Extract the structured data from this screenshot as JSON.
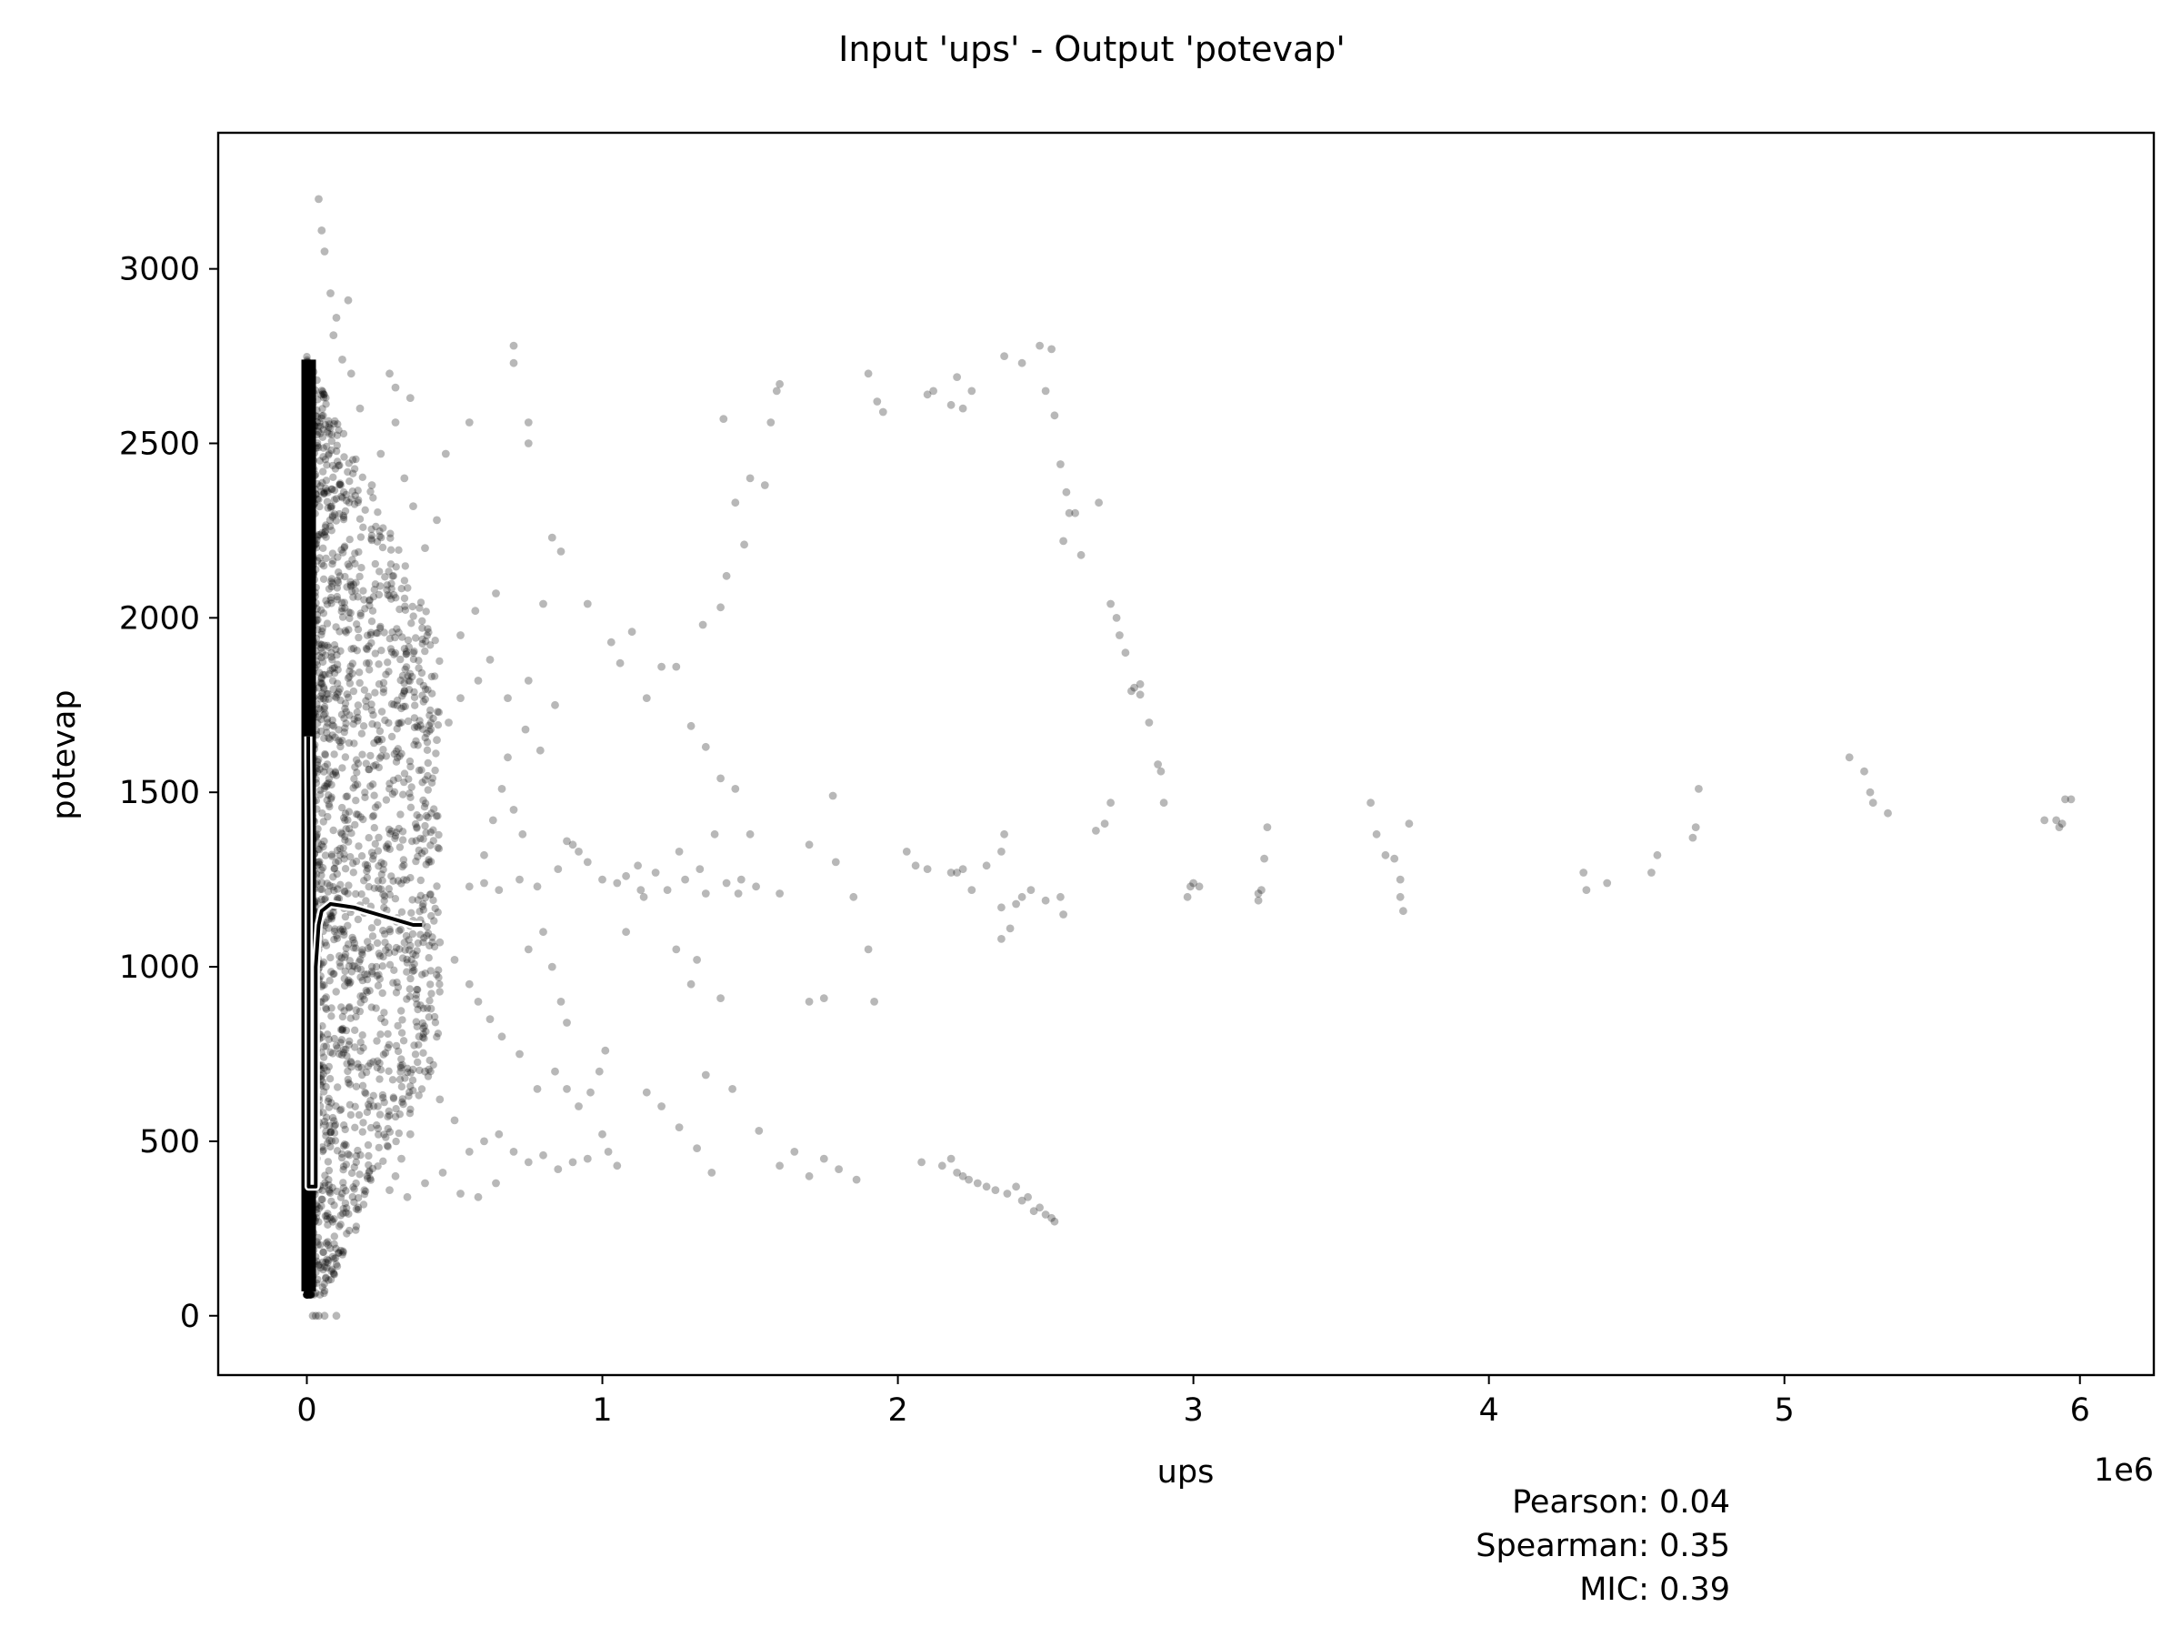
{
  "chart_data": {
    "type": "scatter",
    "title": "Input 'ups' - Output 'potevap'",
    "xlabel": "ups",
    "ylabel": "potevap",
    "x_offset_label": "1e6",
    "xlim": [
      -0.3,
      6.25
    ],
    "ylim": [
      -170,
      3390
    ],
    "x_ticks": [
      0,
      1,
      2,
      3,
      4,
      5,
      6
    ],
    "x_tick_labels": [
      "0",
      "1",
      "2",
      "3",
      "4",
      "5",
      "6"
    ],
    "y_ticks": [
      0,
      500,
      1000,
      1500,
      2000,
      2500,
      3000
    ],
    "y_tick_labels": [
      "0",
      "500",
      "1000",
      "1500",
      "2000",
      "2500",
      "3000"
    ],
    "grid": false,
    "point_color": "#000000",
    "point_opacity": 0.28,
    "series": [
      {
        "points": [
          [
            0.7,
            2780
          ],
          [
            0.7,
            2730
          ],
          [
            0.75,
            2560
          ],
          [
            0.75,
            2500
          ],
          [
            0.55,
            2560
          ],
          [
            0.47,
            2470
          ],
          [
            0.83,
            2230
          ],
          [
            0.86,
            2190
          ],
          [
            0.8,
            2040
          ],
          [
            0.95,
            2040
          ],
          [
            1.03,
            1930
          ],
          [
            1.06,
            1870
          ],
          [
            1.1,
            1960
          ],
          [
            1.15,
            1770
          ],
          [
            1.2,
            1860
          ],
          [
            1.25,
            1860
          ],
          [
            1.3,
            1690
          ],
          [
            1.35,
            1630
          ],
          [
            1.4,
            1540
          ],
          [
            1.45,
            1510
          ],
          [
            1.38,
            1380
          ],
          [
            1.5,
            1380
          ],
          [
            1.6,
            1210
          ],
          [
            1.7,
            1350
          ],
          [
            1.78,
            1490
          ],
          [
            1.79,
            1300
          ],
          [
            1.85,
            1200
          ],
          [
            1.9,
            1050
          ],
          [
            1.92,
            900
          ],
          [
            1.7,
            900
          ],
          [
            1.75,
            910
          ],
          [
            1.4,
            910
          ],
          [
            1.3,
            950
          ],
          [
            1.32,
            1020
          ],
          [
            1.25,
            1050
          ],
          [
            1.35,
            690
          ],
          [
            1.44,
            650
          ],
          [
            1.53,
            530
          ],
          [
            1.6,
            430
          ],
          [
            1.65,
            470
          ],
          [
            1.7,
            400
          ],
          [
            1.75,
            450
          ],
          [
            1.8,
            420
          ],
          [
            1.86,
            390
          ],
          [
            1.15,
            640
          ],
          [
            1.2,
            600
          ],
          [
            1.26,
            540
          ],
          [
            1.32,
            480
          ],
          [
            1.37,
            410
          ],
          [
            1.41,
            2570
          ],
          [
            1.45,
            2330
          ],
          [
            1.48,
            2210
          ],
          [
            1.5,
            2400
          ],
          [
            1.55,
            2380
          ],
          [
            1.57,
            2560
          ],
          [
            1.59,
            2650
          ],
          [
            1.6,
            2670
          ],
          [
            1.42,
            2120
          ],
          [
            1.4,
            2030
          ],
          [
            1.34,
            1980
          ],
          [
            1.9,
            2700
          ],
          [
            1.93,
            2620
          ],
          [
            1.95,
            2590
          ],
          [
            2.1,
            2640
          ],
          [
            2.12,
            2650
          ],
          [
            2.18,
            2610
          ],
          [
            2.2,
            2690
          ],
          [
            2.22,
            2600
          ],
          [
            2.25,
            2650
          ],
          [
            2.36,
            2750
          ],
          [
            2.42,
            2730
          ],
          [
            2.48,
            2780
          ],
          [
            2.52,
            2770
          ],
          [
            2.5,
            2650
          ],
          [
            2.53,
            2580
          ],
          [
            2.55,
            2440
          ],
          [
            2.57,
            2360
          ],
          [
            2.58,
            2300
          ],
          [
            2.56,
            2220
          ],
          [
            2.6,
            2300
          ],
          [
            2.62,
            2180
          ],
          [
            2.68,
            2330
          ],
          [
            2.72,
            2040
          ],
          [
            2.74,
            2000
          ],
          [
            2.75,
            1950
          ],
          [
            2.77,
            1900
          ],
          [
            2.79,
            1790
          ],
          [
            2.82,
            1780
          ],
          [
            2.85,
            1700
          ],
          [
            2.88,
            1580
          ],
          [
            2.89,
            1560
          ],
          [
            2.9,
            1470
          ],
          [
            2.8,
            1800
          ],
          [
            2.82,
            1810
          ],
          [
            2.72,
            1470
          ],
          [
            2.7,
            1410
          ],
          [
            2.67,
            1390
          ],
          [
            2.03,
            1330
          ],
          [
            2.06,
            1290
          ],
          [
            2.1,
            1280
          ],
          [
            2.18,
            1270
          ],
          [
            2.2,
            1270
          ],
          [
            2.22,
            1280
          ],
          [
            2.25,
            1220
          ],
          [
            2.3,
            1290
          ],
          [
            2.35,
            1330
          ],
          [
            2.36,
            1380
          ],
          [
            2.35,
            1170
          ],
          [
            2.4,
            1180
          ],
          [
            2.42,
            1200
          ],
          [
            2.45,
            1220
          ],
          [
            2.5,
            1190
          ],
          [
            2.55,
            1200
          ],
          [
            2.56,
            1150
          ],
          [
            2.35,
            1080
          ],
          [
            2.38,
            1110
          ],
          [
            2.08,
            440
          ],
          [
            2.15,
            430
          ],
          [
            2.18,
            450
          ],
          [
            2.2,
            410
          ],
          [
            2.22,
            400
          ],
          [
            2.24,
            390
          ],
          [
            2.27,
            380
          ],
          [
            2.3,
            370
          ],
          [
            2.33,
            360
          ],
          [
            2.37,
            350
          ],
          [
            2.4,
            370
          ],
          [
            2.42,
            330
          ],
          [
            2.44,
            340
          ],
          [
            2.46,
            300
          ],
          [
            2.48,
            310
          ],
          [
            2.5,
            290
          ],
          [
            2.52,
            280
          ],
          [
            2.53,
            270
          ],
          [
            2.98,
            1200
          ],
          [
            3.0,
            1240
          ],
          [
            2.99,
            1230
          ],
          [
            3.02,
            1230
          ],
          [
            3.22,
            1210
          ],
          [
            3.22,
            1190
          ],
          [
            3.23,
            1220
          ],
          [
            3.25,
            1400
          ],
          [
            3.24,
            1310
          ],
          [
            3.6,
            1470
          ],
          [
            3.62,
            1380
          ],
          [
            3.65,
            1320
          ],
          [
            3.68,
            1310
          ],
          [
            3.7,
            1250
          ],
          [
            3.7,
            1200
          ],
          [
            3.71,
            1160
          ],
          [
            3.73,
            1410
          ],
          [
            4.32,
            1270
          ],
          [
            4.33,
            1220
          ],
          [
            4.4,
            1240
          ],
          [
            4.55,
            1270
          ],
          [
            4.57,
            1320
          ],
          [
            4.69,
            1370
          ],
          [
            4.7,
            1400
          ],
          [
            4.71,
            1510
          ],
          [
            5.22,
            1600
          ],
          [
            5.27,
            1560
          ],
          [
            5.29,
            1500
          ],
          [
            5.3,
            1470
          ],
          [
            5.35,
            1440
          ],
          [
            5.88,
            1420
          ],
          [
            5.92,
            1420
          ],
          [
            5.93,
            1400
          ],
          [
            5.95,
            1480
          ],
          [
            5.97,
            1480
          ],
          [
            5.94,
            1410
          ],
          [
            0.9,
            1350
          ],
          [
            0.92,
            1330
          ],
          [
            0.95,
            1300
          ],
          [
            1.0,
            1250
          ],
          [
            1.05,
            1240
          ],
          [
            1.08,
            1260
          ],
          [
            0.88,
            1360
          ],
          [
            0.85,
            1280
          ],
          [
            0.78,
            1230
          ],
          [
            0.72,
            1250
          ],
          [
            0.65,
            1220
          ],
          [
            0.6,
            1240
          ],
          [
            0.55,
            1230
          ],
          [
            0.6,
            1320
          ],
          [
            0.63,
            1420
          ],
          [
            0.66,
            1510
          ],
          [
            0.7,
            1450
          ],
          [
            0.73,
            1380
          ],
          [
            0.68,
            1600
          ],
          [
            0.74,
            1680
          ],
          [
            0.79,
            1620
          ],
          [
            0.84,
            1750
          ],
          [
            0.75,
            1820
          ],
          [
            0.68,
            1770
          ],
          [
            0.62,
            1880
          ],
          [
            0.58,
            1820
          ],
          [
            0.52,
            1770
          ],
          [
            0.48,
            1700
          ],
          [
            0.44,
            1650
          ],
          [
            0.52,
            1950
          ],
          [
            0.57,
            2020
          ],
          [
            0.64,
            2070
          ],
          [
            0.4,
            2200
          ],
          [
            0.44,
            2280
          ],
          [
            0.36,
            2320
          ],
          [
            0.33,
            2400
          ],
          [
            0.3,
            2560
          ],
          [
            0.35,
            2630
          ],
          [
            0.28,
            2700
          ],
          [
            0.3,
            2660
          ],
          [
            0.25,
            2470
          ],
          [
            0.22,
            2380
          ],
          [
            0.18,
            2600
          ],
          [
            0.15,
            2700
          ],
          [
            0.12,
            2740
          ],
          [
            0.1,
            2860
          ],
          [
            0.08,
            2930
          ],
          [
            0.06,
            3050
          ],
          [
            0.05,
            3110
          ],
          [
            0.04,
            3200
          ],
          [
            0.09,
            2810
          ],
          [
            0.14,
            2910
          ],
          [
            0.55,
            470
          ],
          [
            0.6,
            500
          ],
          [
            0.65,
            520
          ],
          [
            0.7,
            470
          ],
          [
            0.75,
            440
          ],
          [
            0.8,
            460
          ],
          [
            0.85,
            420
          ],
          [
            0.9,
            440
          ],
          [
            0.95,
            450
          ],
          [
            1.0,
            520
          ],
          [
            1.02,
            470
          ],
          [
            1.05,
            430
          ],
          [
            0.92,
            600
          ],
          [
            0.96,
            640
          ],
          [
            0.99,
            700
          ],
          [
            1.01,
            760
          ],
          [
            0.88,
            650
          ],
          [
            0.84,
            700
          ],
          [
            0.78,
            650
          ],
          [
            0.72,
            750
          ],
          [
            0.66,
            800
          ],
          [
            0.62,
            850
          ],
          [
            0.58,
            900
          ],
          [
            0.55,
            950
          ],
          [
            0.75,
            1050
          ],
          [
            0.8,
            1100
          ],
          [
            0.83,
            1000
          ],
          [
            0.86,
            900
          ],
          [
            0.88,
            840
          ],
          [
            0.5,
            1020
          ],
          [
            0.45,
            1070
          ],
          [
            0.5,
            560
          ],
          [
            0.45,
            620
          ],
          [
            0.4,
            700
          ],
          [
            0.38,
            800
          ],
          [
            0.42,
            880
          ],
          [
            0.35,
            520
          ],
          [
            0.32,
            450
          ],
          [
            0.3,
            400
          ],
          [
            0.28,
            360
          ],
          [
            0.34,
            340
          ],
          [
            0.4,
            380
          ],
          [
            0.46,
            410
          ],
          [
            0.52,
            350
          ],
          [
            0.58,
            340
          ],
          [
            0.64,
            380
          ],
          [
            1.22,
            1220
          ],
          [
            1.28,
            1250
          ],
          [
            1.35,
            1210
          ],
          [
            1.42,
            1240
          ],
          [
            1.47,
            1250
          ],
          [
            1.52,
            1230
          ],
          [
            1.18,
            1270
          ],
          [
            1.12,
            1290
          ],
          [
            1.14,
            1200
          ],
          [
            1.08,
            1100
          ],
          [
            1.13,
            1220
          ],
          [
            1.26,
            1330
          ],
          [
            1.33,
            1280
          ],
          [
            1.46,
            1210
          ],
          [
            0.06,
            0
          ],
          [
            0.1,
            0
          ],
          [
            0.02,
            0
          ],
          [
            0.03,
            0
          ],
          [
            0.04,
            0
          ]
        ]
      }
    ],
    "dense_band": {
      "description_free": true,
      "x_range": [
        0.0,
        0.45
      ],
      "y_range": [
        60,
        2750
      ]
    },
    "trend_line": {
      "color": "#000000",
      "outline": "#ffffff",
      "points": [
        [
          0.005,
          1660
        ],
        [
          0.005,
          1600
        ],
        [
          0.006,
          1400
        ],
        [
          0.006,
          1200
        ],
        [
          0.006,
          1000
        ],
        [
          0.006,
          800
        ],
        [
          0.006,
          600
        ],
        [
          0.006,
          370
        ],
        [
          0.03,
          370
        ],
        [
          0.03,
          600
        ],
        [
          0.03,
          800
        ],
        [
          0.03,
          1000
        ],
        [
          0.04,
          1120
        ],
        [
          0.05,
          1160
        ],
        [
          0.08,
          1180
        ],
        [
          0.12,
          1175
        ],
        [
          0.16,
          1170
        ],
        [
          0.2,
          1160
        ],
        [
          0.24,
          1150
        ],
        [
          0.28,
          1140
        ],
        [
          0.32,
          1130
        ],
        [
          0.36,
          1120
        ],
        [
          0.39,
          1120
        ]
      ]
    }
  },
  "stats": {
    "pearson": "Pearson: 0.04",
    "spearman": "Spearman: 0.35",
    "mic": "MIC: 0.39"
  }
}
